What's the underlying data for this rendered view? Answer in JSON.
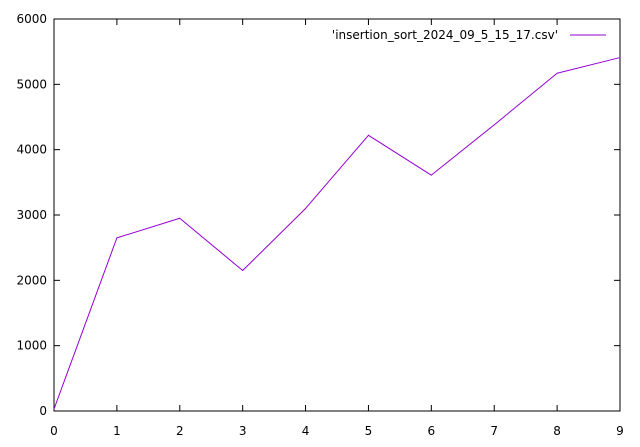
{
  "chart_data": {
    "type": "line",
    "title": "",
    "xlabel": "",
    "ylabel": "",
    "xlim": [
      0,
      9
    ],
    "ylim": [
      0,
      6000
    ],
    "x_ticks": [
      0,
      1,
      2,
      3,
      4,
      5,
      6,
      7,
      8,
      9
    ],
    "y_ticks": [
      0,
      1000,
      2000,
      3000,
      4000,
      5000,
      6000
    ],
    "grid": false,
    "legend_position": "top-right",
    "series": [
      {
        "name": "'insertion_sort_2024_09_5_15_17.csv'",
        "color": "#9400d3",
        "x": [
          0,
          1,
          2,
          3,
          4,
          5,
          6,
          7,
          8,
          9
        ],
        "y": [
          30,
          2650,
          2950,
          2150,
          3100,
          4220,
          3610,
          4380,
          5170,
          5410
        ]
      }
    ]
  }
}
